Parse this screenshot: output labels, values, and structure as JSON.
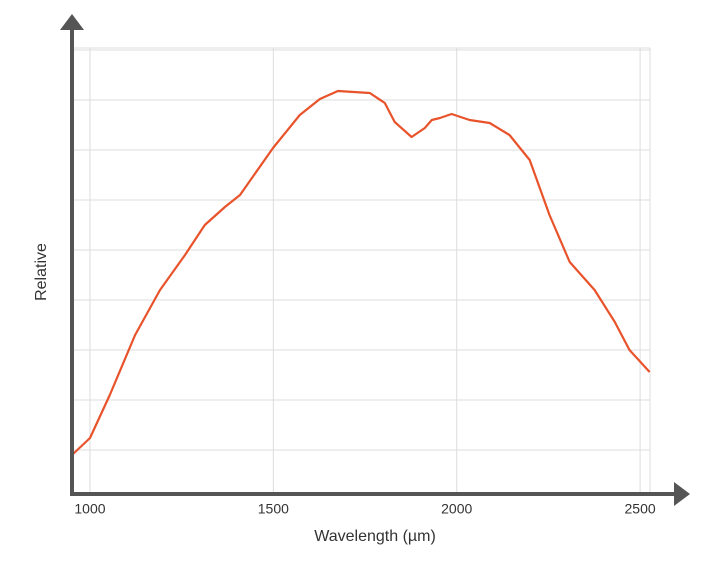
{
  "chart_data": {
    "type": "line",
    "x_label": "Wavelength (µm)",
    "y_label": "Relative",
    "x": [
      951,
      1000,
      1054,
      1123,
      1191,
      1259,
      1313,
      1368,
      1409,
      1499,
      1572,
      1627,
      1676,
      1763,
      1804,
      1831,
      1877,
      1913,
      1932,
      1954,
      1986,
      2035,
      2090,
      2144,
      2199,
      2253,
      2308,
      2376,
      2431,
      2471,
      2526
    ],
    "values": [
      0.9,
      1.24,
      2.1,
      3.3,
      4.2,
      4.9,
      5.5,
      5.86,
      6.1,
      7.04,
      7.7,
      8.02,
      8.18,
      8.14,
      7.94,
      7.56,
      7.26,
      7.44,
      7.6,
      7.64,
      7.72,
      7.6,
      7.54,
      7.3,
      6.8,
      5.7,
      4.76,
      4.2,
      3.56,
      3.0,
      2.56
    ],
    "color": "#e8532b",
    "xlim": [
      951,
      2527
    ],
    "xticks": [
      1000,
      1500,
      2000,
      2500
    ],
    "ylim": [
      0.12,
      9.04
    ],
    "yticks": [
      1,
      2,
      3,
      4,
      5,
      6,
      7,
      8,
      9
    ],
    "y_tick_labels": false,
    "grid": true
  }
}
